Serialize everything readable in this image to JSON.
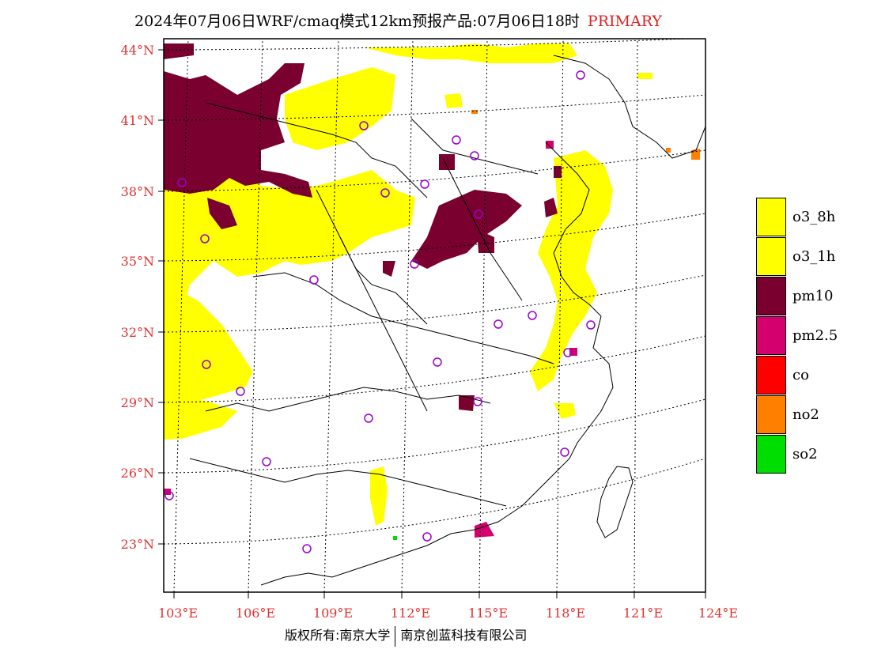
{
  "title": {
    "main": "2024年07月06日WRF/cmaq模式12km预报产品:07月06日18时",
    "tag": "PRIMARY"
  },
  "axes": {
    "lat_labels": [
      "44°N",
      "41°N",
      "38°N",
      "35°N",
      "32°N",
      "29°N",
      "26°N",
      "23°N"
    ],
    "lon_labels": [
      "103°E",
      "106°E",
      "109°E",
      "112°E",
      "115°E",
      "118°E",
      "121°E",
      "124°E"
    ]
  },
  "legend": {
    "items": [
      {
        "label": "o3_8h",
        "color": "#ffff00"
      },
      {
        "label": "o3_1h",
        "color": "#ffff00"
      },
      {
        "label": "pm10",
        "color": "#7a0030"
      },
      {
        "label": "pm2.5",
        "color": "#d4006e"
      },
      {
        "label": "co",
        "color": "#ff0000"
      },
      {
        "label": "no2",
        "color": "#ff8000"
      },
      {
        "label": "so2",
        "color": "#00dd00"
      }
    ]
  },
  "footer": {
    "left": "版权所有:南京大学",
    "right": "南京创蓝科技有限公司"
  },
  "colors": {
    "lat_lon_label": "#e03030",
    "o3": "#ffff00",
    "pm10": "#7a0030",
    "pm25": "#d4006e",
    "no2": "#ff8000",
    "so2": "#00dd00",
    "station_marker": "#9900cc"
  }
}
